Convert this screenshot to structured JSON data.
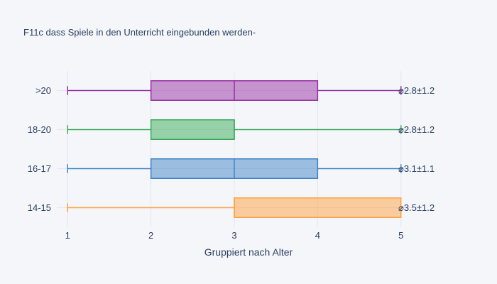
{
  "chart_data": {
    "type": "box",
    "orientation": "horizontal",
    "title": "F11c dass Spiele in den Unterricht eingebunden werden-",
    "xlabel": "Gruppiert nach Alter",
    "ylabel": "",
    "xlim": [
      0.87,
      5.13
    ],
    "xticks": [
      1,
      2,
      3,
      4,
      5
    ],
    "grid": true,
    "legend": "none",
    "series": [
      {
        "category": "14-15",
        "min": 1,
        "q1": 3,
        "median": 3,
        "q3": 5,
        "max": 5,
        "color": "#ff9f40",
        "annotation": "⌀3.5±1.2"
      },
      {
        "category": "16-17",
        "min": 1,
        "q1": 2,
        "median": 3,
        "q3": 4,
        "max": 5,
        "color": "#3f83c6",
        "annotation": "⌀3.1±1.1"
      },
      {
        "category": "18-20",
        "min": 1,
        "q1": 2,
        "median": 3,
        "q3": 3,
        "max": 5,
        "color": "#3aab5a",
        "annotation": "⌀2.8±1.2"
      },
      {
        "category": ">20",
        "min": 1,
        "q1": 2,
        "median": 3,
        "q3": 4,
        "max": 5,
        "color": "#962fa1",
        "annotation": "⌀2.8±1.2"
      }
    ]
  }
}
